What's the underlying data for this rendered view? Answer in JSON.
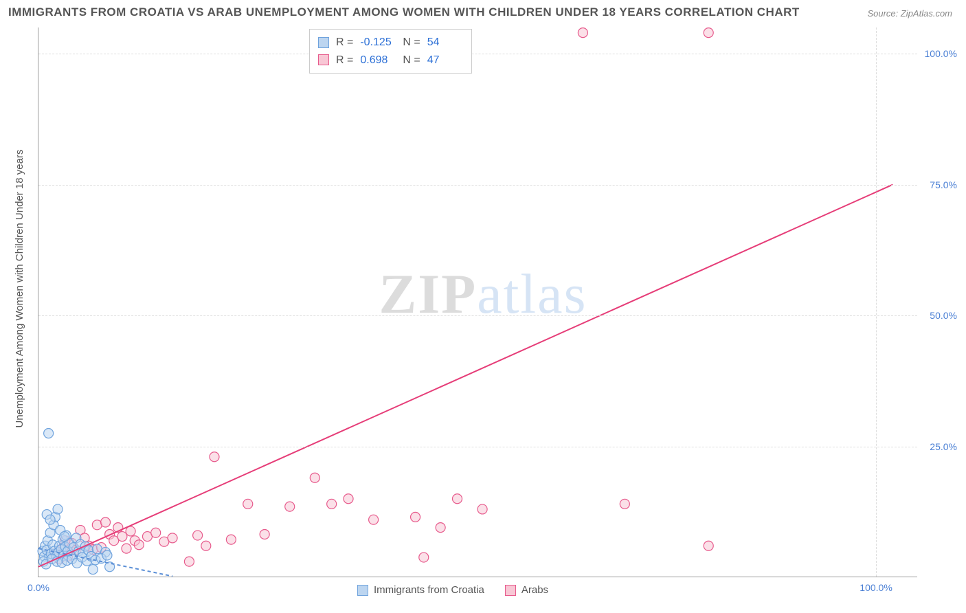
{
  "title": "IMMIGRANTS FROM CROATIA VS ARAB UNEMPLOYMENT AMONG WOMEN WITH CHILDREN UNDER 18 YEARS CORRELATION CHART",
  "source": "Source: ZipAtlas.com",
  "ylabel": "Unemployment Among Women with Children Under 18 years",
  "watermark_a": "ZIP",
  "watermark_b": "atlas",
  "chart": {
    "type": "scatter",
    "xlim": [
      0,
      105
    ],
    "ylim": [
      0,
      105
    ],
    "xtick_labels": {
      "0": "0.0%",
      "100": "100.0%"
    },
    "ytick_labels": {
      "25": "25.0%",
      "50": "50.0%",
      "75": "75.0%",
      "100": "100.0%"
    },
    "grid_color": "#dddddd",
    "background_color": "#ffffff",
    "marker_radius": 7,
    "marker_stroke_width": 1.2,
    "trend_line_width": 2
  },
  "series": {
    "croatia": {
      "label": "Immigrants from Croatia",
      "fill": "#bcd5f0",
      "stroke": "#6fa3dd",
      "R": "-0.125",
      "N": "54",
      "trend": {
        "x1": 0,
        "y1": 5.5,
        "x2": 16,
        "y2": 0.2,
        "dash": "5,4",
        "color": "#5b8fd6"
      },
      "points": [
        [
          0.5,
          5
        ],
        [
          0.7,
          4
        ],
        [
          0.8,
          6
        ],
        [
          1.0,
          5.2
        ],
        [
          1.1,
          7
        ],
        [
          1.3,
          3.8
        ],
        [
          1.4,
          8.5
        ],
        [
          1.5,
          4.5
        ],
        [
          1.7,
          6.2
        ],
        [
          1.8,
          10
        ],
        [
          1.9,
          5
        ],
        [
          2.0,
          11.5
        ],
        [
          2.1,
          4
        ],
        [
          2.3,
          13
        ],
        [
          2.4,
          4.8
        ],
        [
          2.5,
          6
        ],
        [
          2.7,
          5.3
        ],
        [
          2.9,
          7.2
        ],
        [
          3.0,
          4.1
        ],
        [
          3.2,
          5.8
        ],
        [
          3.3,
          8
        ],
        [
          3.5,
          5
        ],
        [
          3.7,
          6.5
        ],
        [
          3.9,
          4.3
        ],
        [
          4.2,
          5.7
        ],
        [
          4.5,
          7.5
        ],
        [
          4.8,
          5
        ],
        [
          5.0,
          6.3
        ],
        [
          5.3,
          4.6
        ],
        [
          5.6,
          5.9
        ],
        [
          6.0,
          5.1
        ],
        [
          6.5,
          1.5
        ],
        [
          7.0,
          5.4
        ],
        [
          8.0,
          4.8
        ],
        [
          8.5,
          2
        ],
        [
          1.2,
          27.5
        ],
        [
          0.6,
          3
        ],
        [
          0.9,
          2.5
        ],
        [
          1.6,
          3.5
        ],
        [
          2.2,
          3
        ],
        [
          2.8,
          2.8
        ],
        [
          3.4,
          3.2
        ],
        [
          4.0,
          3.5
        ],
        [
          4.6,
          2.7
        ],
        [
          5.2,
          3.8
        ],
        [
          5.8,
          3.1
        ],
        [
          6.3,
          4
        ],
        [
          6.8,
          3.3
        ],
        [
          7.5,
          3.6
        ],
        [
          8.2,
          4.2
        ],
        [
          1.0,
          12
        ],
        [
          1.4,
          11
        ],
        [
          2.6,
          9
        ],
        [
          3.1,
          7.8
        ]
      ]
    },
    "arabs": {
      "label": "Arabs",
      "fill": "#f8c7d5",
      "stroke": "#e75a8c",
      "R": "0.698",
      "N": "47",
      "trend": {
        "x1": 0,
        "y1": 2,
        "x2": 102,
        "y2": 75,
        "dash": "none",
        "color": "#e63d78"
      },
      "points": [
        [
          2,
          4.5
        ],
        [
          3,
          5.8
        ],
        [
          3.5,
          4
        ],
        [
          4,
          6.5
        ],
        [
          4.5,
          5.2
        ],
        [
          5,
          9
        ],
        [
          5.5,
          7.5
        ],
        [
          6,
          6
        ],
        [
          6.5,
          5.3
        ],
        [
          7,
          10
        ],
        [
          7.5,
          5.7
        ],
        [
          8,
          10.5
        ],
        [
          8.5,
          8.2
        ],
        [
          9,
          7
        ],
        [
          9.5,
          9.5
        ],
        [
          10,
          7.8
        ],
        [
          10.5,
          5.5
        ],
        [
          11,
          8.8
        ],
        [
          11.5,
          7
        ],
        [
          12,
          6.2
        ],
        [
          13,
          7.8
        ],
        [
          14,
          8.5
        ],
        [
          15,
          6.8
        ],
        [
          16,
          7.5
        ],
        [
          18,
          3
        ],
        [
          19,
          8
        ],
        [
          20,
          6
        ],
        [
          21,
          23
        ],
        [
          23,
          7.2
        ],
        [
          25,
          14
        ],
        [
          27,
          8.2
        ],
        [
          30,
          13.5
        ],
        [
          33,
          19
        ],
        [
          35,
          14
        ],
        [
          37,
          15
        ],
        [
          40,
          11
        ],
        [
          45,
          11.5
        ],
        [
          46,
          3.8
        ],
        [
          48,
          9.5
        ],
        [
          50,
          15
        ],
        [
          53,
          13
        ],
        [
          65,
          104
        ],
        [
          70,
          14
        ],
        [
          80,
          104
        ],
        [
          80,
          6
        ],
        [
          2.5,
          3.5
        ],
        [
          3.2,
          7
        ]
      ]
    }
  }
}
